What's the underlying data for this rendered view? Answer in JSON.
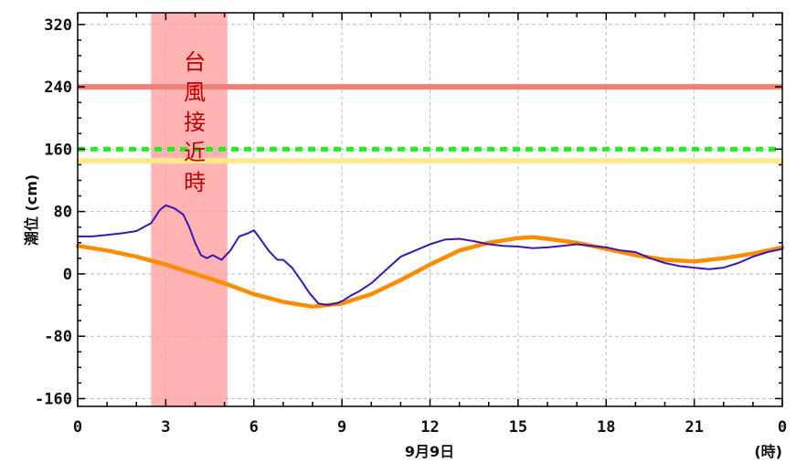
{
  "chart_data": {
    "type": "line",
    "ylabel": "潮位 (cm)",
    "xlabel": "9月9日",
    "xunit": "(時)",
    "yticks": [
      320,
      240,
      160,
      80,
      0,
      -80,
      -160
    ],
    "xticks": [
      "0",
      "3",
      "6",
      "9",
      "12",
      "15",
      "18",
      "21",
      "0"
    ],
    "xlim": [
      0,
      24
    ],
    "ylim": [
      -170,
      335
    ],
    "grid": true,
    "colors": {
      "observed": "#3a16b4",
      "predicted": "#ff8c00",
      "level_240": "#f07f7a",
      "level_160": "#22ee22",
      "level_145": "#ffe98a",
      "shade": "#ff9a9a"
    },
    "annotation": {
      "text": "台風接近時",
      "x_range": [
        2.5,
        5.1
      ]
    },
    "reference_lines": [
      {
        "y": 240,
        "style": "solid",
        "color": "#f07f7a"
      },
      {
        "y": 160,
        "style": "dashed",
        "color": "#22ee22"
      },
      {
        "y": 145,
        "style": "solid",
        "color": "#ffe98a"
      }
    ],
    "series": [
      {
        "key": "observed",
        "x": [
          0,
          0.5,
          1,
          1.5,
          2,
          2.5,
          2.8,
          3.0,
          3.3,
          3.6,
          3.8,
          4.0,
          4.2,
          4.4,
          4.6,
          4.9,
          5.2,
          5.5,
          5.8,
          6.0,
          6.2,
          6.5,
          6.8,
          7.0,
          7.3,
          7.6,
          7.9,
          8.2,
          8.5,
          8.8,
          9.0,
          9.3,
          9.6,
          10.0,
          10.5,
          11.0,
          11.5,
          12.0,
          12.5,
          13.0,
          13.5,
          14.0,
          14.5,
          15.0,
          15.5,
          16.0,
          16.5,
          17.0,
          17.5,
          18.0,
          18.5,
          19.0,
          19.5,
          20.0,
          20.5,
          21.0,
          21.5,
          22.0,
          22.5,
          23.0,
          23.5,
          24.0
        ],
        "y": [
          48,
          48,
          50,
          52,
          55,
          65,
          82,
          88,
          84,
          76,
          60,
          40,
          24,
          20,
          24,
          18,
          30,
          48,
          52,
          56,
          46,
          30,
          18,
          18,
          8,
          -8,
          -25,
          -38,
          -40,
          -38,
          -35,
          -28,
          -22,
          -12,
          5,
          22,
          30,
          38,
          44,
          45,
          42,
          38,
          36,
          35,
          33,
          34,
          36,
          38,
          36,
          34,
          30,
          28,
          20,
          14,
          10,
          8,
          6,
          8,
          14,
          22,
          28,
          32
        ]
      },
      {
        "key": "predicted",
        "x": [
          0,
          1,
          2,
          3,
          4,
          5,
          6,
          7,
          8,
          9,
          10,
          11,
          12,
          13,
          14,
          15,
          15.5,
          16,
          17,
          18,
          19,
          20,
          21,
          22,
          23,
          24
        ],
        "y": [
          36,
          30,
          22,
          12,
          0,
          -12,
          -26,
          -36,
          -42,
          -38,
          -26,
          -8,
          12,
          30,
          40,
          46,
          47,
          45,
          40,
          32,
          24,
          18,
          16,
          20,
          26,
          34
        ]
      }
    ]
  }
}
